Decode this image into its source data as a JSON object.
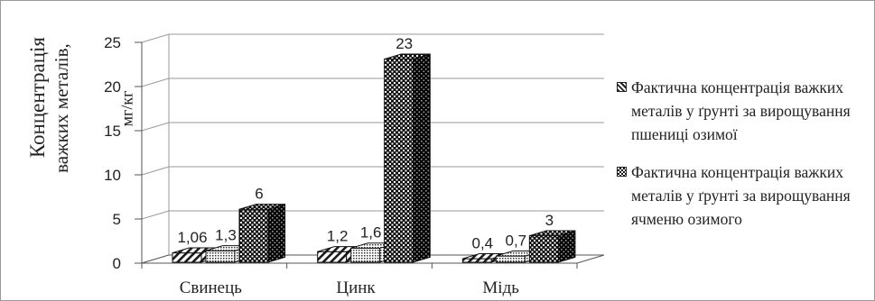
{
  "chart_data": {
    "type": "bar",
    "subtype": "3d-clustered-column",
    "categories": [
      "Свинець",
      "Цинк",
      "Мідь"
    ],
    "series": [
      {
        "name": "",
        "values": [
          1.06,
          1.2,
          0.4
        ],
        "labels": [
          "1,06",
          "1,2",
          "0,4"
        ],
        "pattern": "diagonal-stripes"
      },
      {
        "name": "Фактична концентрація важких металів у ґрунті за вирощування пшениці озимої",
        "values": [
          1.3,
          1.6,
          0.7
        ],
        "labels": [
          "1,3",
          "1,6",
          "0,7"
        ],
        "pattern": "fine-grid"
      },
      {
        "name": "Фактична концентрація важких металів у ґрунті за вирощування ячменю озимого",
        "values": [
          6,
          23,
          3
        ],
        "labels": [
          "6",
          "23",
          "3"
        ],
        "pattern": "checker"
      }
    ],
    "y_ticks": [
      "0",
      "5",
      "10",
      "15",
      "20",
      "25"
    ],
    "ylim": [
      0,
      25
    ],
    "ylabel_line1": "Концентрація",
    "ylabel_line2": "важких металів,",
    "ylabel_unit": "мг/кг",
    "grid": true,
    "legend_position": "right"
  },
  "colors": {
    "bar_dark": "#1a1a1a",
    "bar_light": "#ffffff",
    "grid": "#9a9a9a",
    "text": "#222222"
  }
}
